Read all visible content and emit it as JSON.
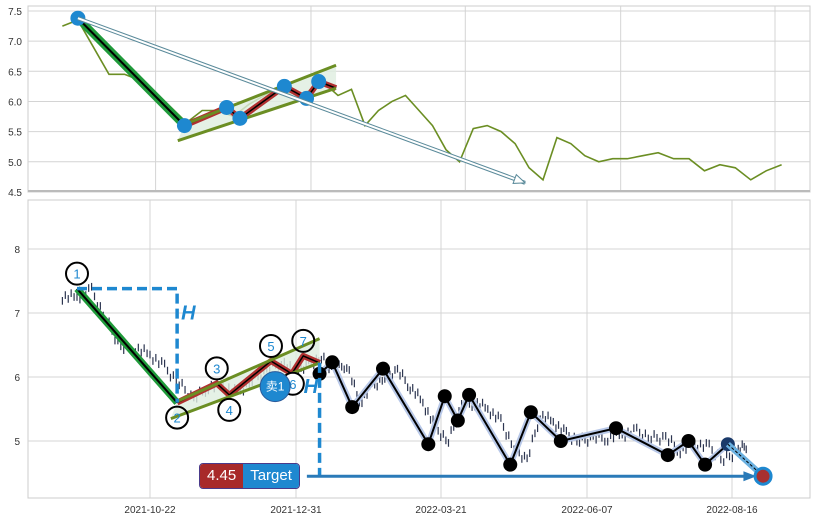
{
  "chart_data": [
    {
      "type": "line",
      "panel": "top",
      "ylim": [
        4.5,
        7.5
      ],
      "yticks": [
        "7.5",
        "7.0",
        "6.5",
        "6.0",
        "5.5",
        "5.0",
        "4.5"
      ],
      "grid": true,
      "line_color": "#6b8e23"
    },
    {
      "type": "candlestick",
      "panel": "bottom",
      "ylim": [
        4.1,
        8.75
      ],
      "yticks": [
        "8",
        "7",
        "6",
        "5"
      ],
      "xticks": [
        "2021-10-22",
        "2021-12-31",
        "2022-03-21",
        "2022-06-07",
        "2022-08-16"
      ],
      "grid": true,
      "pattern_labels": [
        "1",
        "2",
        "3",
        "4",
        "5",
        "6",
        "7"
      ],
      "sell_signal": {
        "label": "卖1",
        "date": "2021-12-21",
        "price": 5.85
      },
      "height_marker": "H",
      "target": {
        "value": "4.45",
        "label": "Target",
        "price": 4.45,
        "date": "2022-08-31"
      },
      "colors": {
        "accent": "#1e88d0",
        "trend_down": "#1f9a3a",
        "channel": "#6b8e23",
        "wave": "#b03030",
        "target_value_bg": "#a82a2a"
      }
    }
  ],
  "closes": {
    "dates": [
      "2021-09-10",
      "2021-09-17",
      "2021-09-24",
      "2021-10-01",
      "2021-10-08",
      "2021-10-15",
      "2021-10-22",
      "2021-10-29",
      "2021-11-05",
      "2021-11-12",
      "2021-11-19",
      "2021-11-26",
      "2021-12-03",
      "2021-12-10",
      "2021-12-17",
      "2021-12-24",
      "2021-12-31",
      "2022-01-07",
      "2022-01-14",
      "2022-01-21",
      "2022-01-28",
      "2022-02-04",
      "2022-02-11",
      "2022-02-18",
      "2022-02-25",
      "2022-03-04",
      "2022-03-11",
      "2022-03-18",
      "2022-03-25",
      "2022-04-01",
      "2022-04-08",
      "2022-04-15",
      "2022-04-22",
      "2022-04-29",
      "2022-05-06",
      "2022-05-13",
      "2022-05-20",
      "2022-05-27",
      "2022-06-03",
      "2022-06-10",
      "2022-06-17",
      "2022-06-24",
      "2022-07-01",
      "2022-07-08",
      "2022-07-15",
      "2022-07-22",
      "2022-07-29",
      "2022-08-05",
      "2022-08-12",
      "2022-08-19"
    ],
    "values": [
      7.25,
      7.35,
      6.9,
      6.45,
      6.45,
      6.35,
      6.15,
      5.9,
      5.65,
      5.85,
      5.85,
      5.75,
      5.95,
      6.1,
      6.25,
      6.05,
      6.2,
      6.3,
      6.1,
      6.2,
      5.6,
      5.85,
      6.0,
      6.1,
      5.85,
      5.6,
      5.2,
      5.0,
      5.55,
      5.6,
      5.5,
      5.3,
      4.9,
      4.7,
      5.4,
      5.3,
      5.1,
      5.0,
      5.05,
      5.05,
      5.1,
      5.15,
      5.05,
      5.05,
      4.85,
      4.95,
      4.9,
      4.7,
      4.85,
      4.95
    ]
  },
  "pattern_points": [
    {
      "date": "2021-09-17",
      "price": 7.38
    },
    {
      "date": "2021-11-04",
      "price": 5.6
    },
    {
      "date": "2021-11-23",
      "price": 5.9
    },
    {
      "date": "2021-11-29",
      "price": 5.72
    },
    {
      "date": "2021-12-19",
      "price": 6.25
    },
    {
      "date": "2021-12-29",
      "price": 6.05
    },
    {
      "date": "2022-01-04",
      "price": 6.33
    },
    {
      "date": "2022-01-13",
      "price": 6.22
    }
  ],
  "channel": {
    "lower": [
      {
        "date": "2021-11-01",
        "price": 5.35
      },
      {
        "date": "2022-01-13",
        "price": 6.22
      }
    ],
    "upper": [
      {
        "date": "2021-11-04",
        "price": 5.62
      },
      {
        "date": "2022-01-13",
        "price": 6.6
      }
    ]
  },
  "zigzag": [
    {
      "date": "2022-01-13",
      "price": 6.05
    },
    {
      "date": "2022-01-20",
      "price": 6.23
    },
    {
      "date": "2022-01-31",
      "price": 5.53
    },
    {
      "date": "2022-02-17",
      "price": 6.13
    },
    {
      "date": "2022-03-14",
      "price": 4.95
    },
    {
      "date": "2022-03-23",
      "price": 5.7
    },
    {
      "date": "2022-03-30",
      "price": 5.32
    },
    {
      "date": "2022-04-05",
      "price": 5.72
    },
    {
      "date": "2022-04-27",
      "price": 4.63
    },
    {
      "date": "2022-05-08",
      "price": 5.45
    },
    {
      "date": "2022-05-24",
      "price": 5.0
    },
    {
      "date": "2022-06-21",
      "price": 5.2
    },
    {
      "date": "2022-07-16",
      "price": 4.78
    },
    {
      "date": "2022-07-26",
      "price": 5.0
    },
    {
      "date": "2022-08-03",
      "price": 4.63
    },
    {
      "date": "2022-08-14",
      "price": 4.95
    }
  ],
  "trend_arrow": {
    "from": {
      "date": "2021-09-17",
      "price": 7.38
    },
    "to": {
      "date": "2022-04-20",
      "price": 4.65
    }
  }
}
